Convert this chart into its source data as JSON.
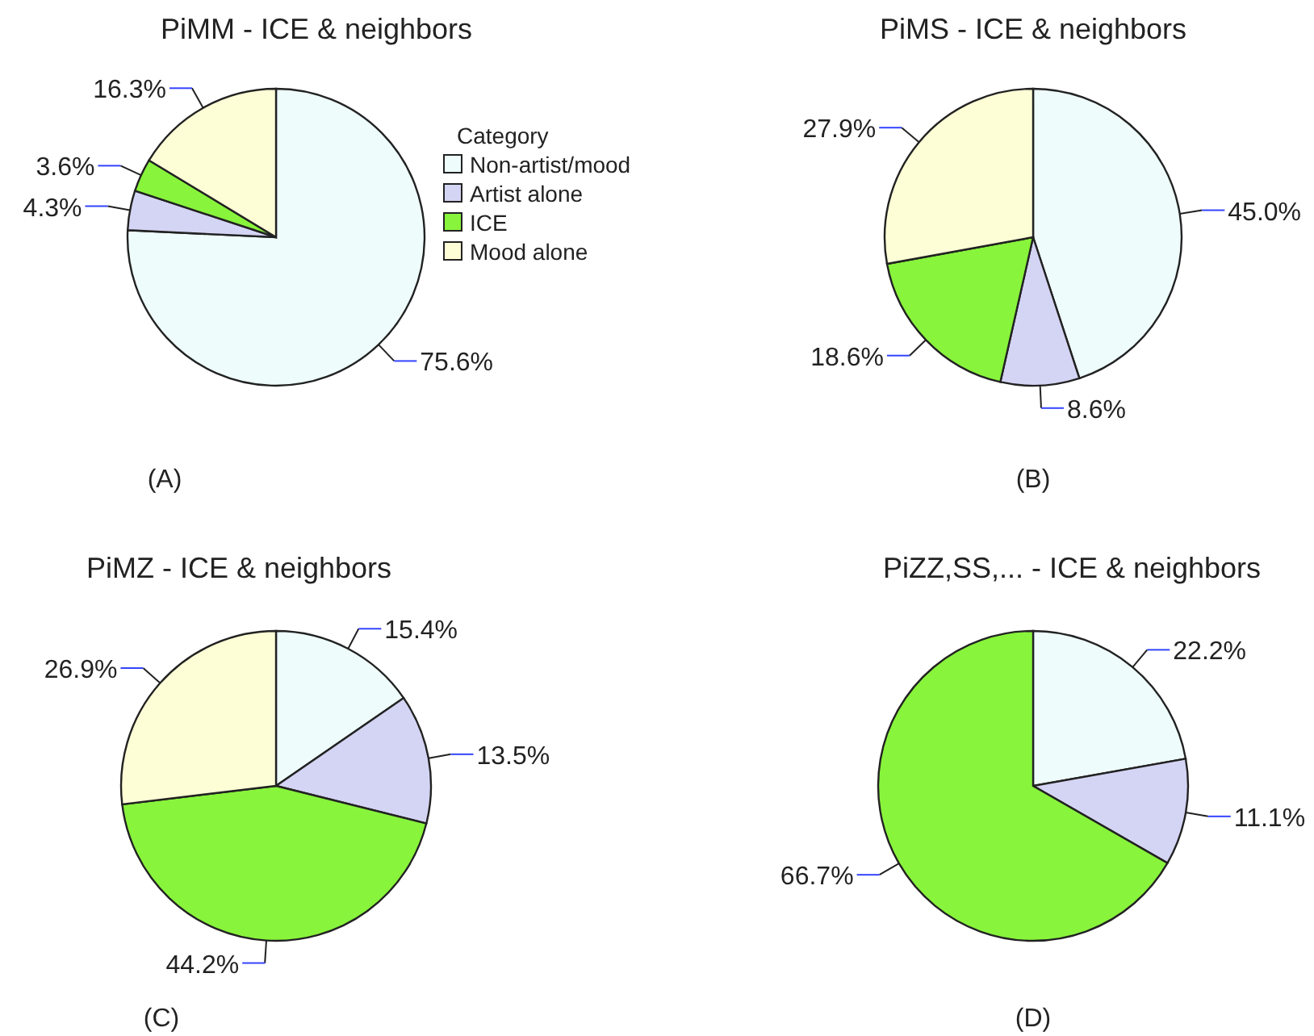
{
  "chart_data": [
    {
      "type": "pie",
      "title": "PiMM - ICE & neighbors",
      "categories": [
        "Non-artist/mood",
        "Artist alone",
        "ICE",
        "Mood alone"
      ],
      "values": [
        75.6,
        4.3,
        3.6,
        16.3
      ],
      "value_labels": [
        "75.6%",
        "4.3%",
        "3.6%",
        "16.3%"
      ],
      "colors": [
        "#eefcfc",
        "#d4d4f4",
        "#88f43c",
        "#fdfdd6"
      ],
      "legend": "right",
      "legend_title": "Category",
      "annotations": [
        "(A)"
      ]
    },
    {
      "type": "pie",
      "title": "PiMS - ICE & neighbors",
      "categories": [
        null,
        null,
        null,
        null
      ],
      "values": [
        45.0,
        8.6,
        18.6,
        27.9
      ],
      "value_labels": [
        "45.0%",
        "8.6%",
        "18.6%",
        "27.9%"
      ],
      "colors": [
        "#eefcfc",
        "#d4d4f4",
        "#88f43c",
        "#fdfdd6"
      ],
      "legend": false,
      "annotations": [
        "(B)"
      ]
    },
    {
      "type": "pie",
      "title": "PiMZ - ICE & neighbors",
      "categories": [
        null,
        null,
        null,
        null
      ],
      "values": [
        15.4,
        13.5,
        44.2,
        26.9
      ],
      "value_labels": [
        "15.4%",
        "13.5%",
        "44.2%",
        "26.9%"
      ],
      "colors": [
        "#eefcfc",
        "#d4d4f4",
        "#88f43c",
        "#fdfdd6"
      ],
      "legend": false,
      "annotations": [
        "(C)"
      ]
    },
    {
      "type": "pie",
      "title": "PiZZ,SS,... - ICE & neighbors",
      "categories": [
        null,
        null,
        null
      ],
      "values": [
        22.2,
        11.1,
        66.7
      ],
      "value_labels": [
        "22.2%",
        "11.1%",
        "66.7%"
      ],
      "colors": [
        "#eefcfc",
        "#d4d4f4",
        "#88f43c"
      ],
      "legend": false,
      "annotations": [
        "(D)"
      ]
    }
  ]
}
